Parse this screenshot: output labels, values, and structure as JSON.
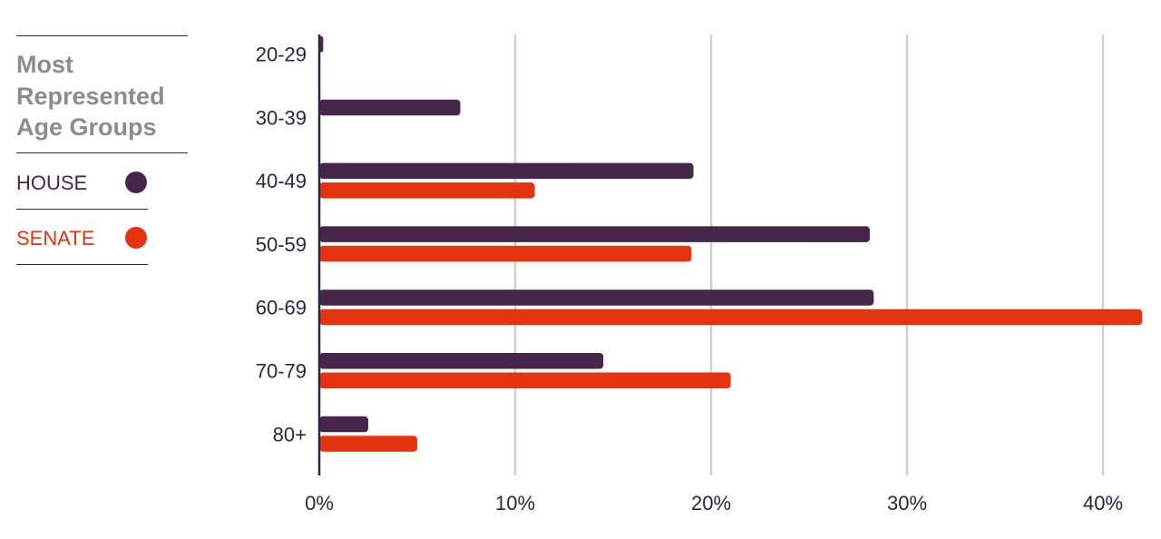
{
  "legend": {
    "title": "Most\nRepresented\nAge Groups",
    "items": [
      {
        "label": "HOUSE",
        "color": "#46264a"
      },
      {
        "label": "SENATE",
        "color": "#e3330f"
      }
    ]
  },
  "chart_data": {
    "type": "bar",
    "orientation": "horizontal",
    "categories": [
      "20-29",
      "30-39",
      "40-49",
      "50-59",
      "60-69",
      "70-79",
      "80+"
    ],
    "series": [
      {
        "name": "HOUSE",
        "color": "#46264a",
        "values": [
          0.2,
          7.2,
          19.1,
          28.1,
          28.3,
          14.5,
          2.5
        ]
      },
      {
        "name": "SENATE",
        "color": "#e3330f",
        "values": [
          0,
          0,
          11.0,
          19.0,
          42.0,
          21.0,
          5.0
        ]
      }
    ],
    "xlim": [
      0,
      42
    ],
    "xticks": [
      0,
      10,
      20,
      30,
      40
    ],
    "xtick_labels": [
      "0%",
      "10%",
      "20%",
      "30%",
      "40%"
    ],
    "grid": true,
    "legend_position": "left"
  }
}
